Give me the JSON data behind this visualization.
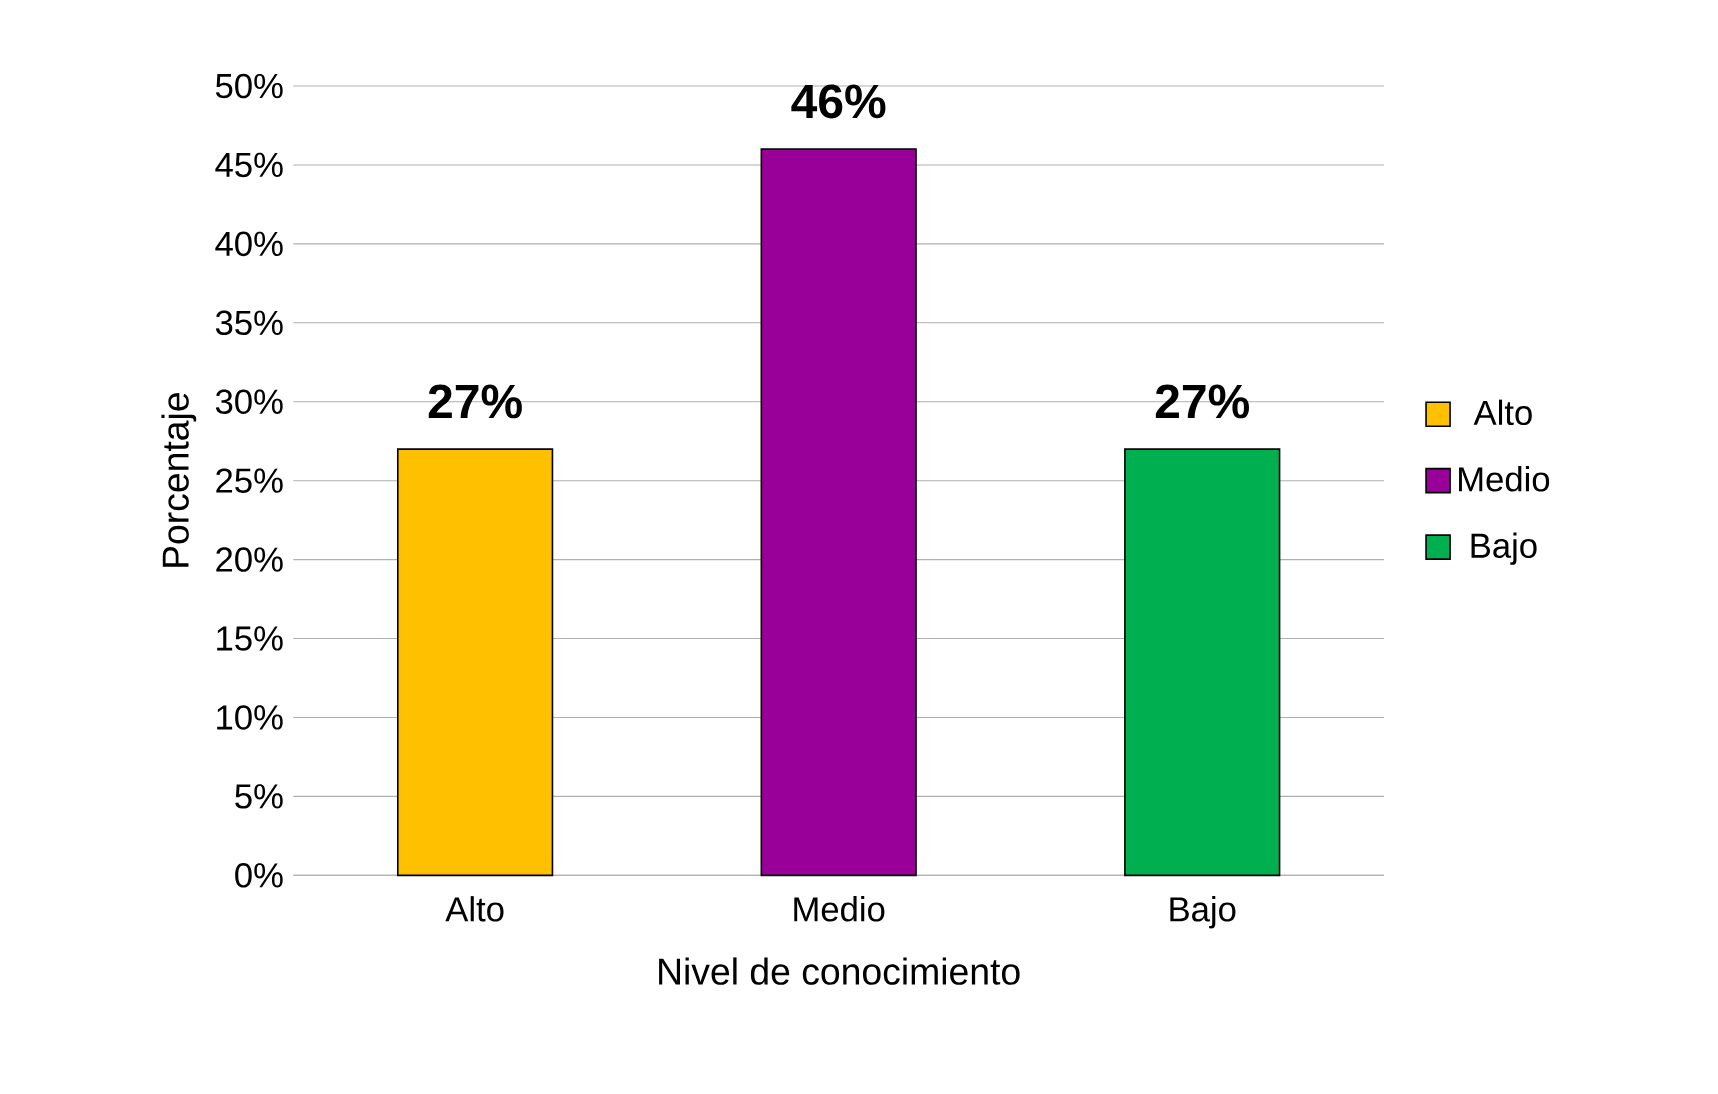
{
  "chart_data": {
    "type": "bar",
    "xlabel": "Nivel de conocimiento",
    "ylabel": "Porcentaje",
    "categories": [
      "Alto",
      "Medio",
      "Bajo"
    ],
    "series": [
      {
        "name": "Alto",
        "color": "#ffc000",
        "values": [
          27,
          null,
          null
        ],
        "value_labels": [
          "27%",
          null,
          null
        ]
      },
      {
        "name": "Medio",
        "color": "#990099",
        "values": [
          null,
          46,
          null
        ],
        "value_labels": [
          null,
          "46%",
          null
        ]
      },
      {
        "name": "Bajo",
        "color": "#00b050",
        "values": [
          null,
          null,
          27
        ],
        "value_labels": [
          null,
          null,
          "27%"
        ]
      }
    ],
    "ylim": [
      0,
      50
    ],
    "yticks": [
      {
        "value": 0,
        "label": "0%"
      },
      {
        "value": 5,
        "label": "5%"
      },
      {
        "value": 10,
        "label": "10%"
      },
      {
        "value": 15,
        "label": "15%"
      },
      {
        "value": 20,
        "label": "20%"
      },
      {
        "value": 25,
        "label": "25%"
      },
      {
        "value": 30,
        "label": "30%"
      },
      {
        "value": 35,
        "label": "35%"
      },
      {
        "value": 40,
        "label": "40%"
      },
      {
        "value": 45,
        "label": "45%"
      },
      {
        "value": 50,
        "label": "50%"
      }
    ],
    "grid": "y",
    "legend": "right"
  }
}
